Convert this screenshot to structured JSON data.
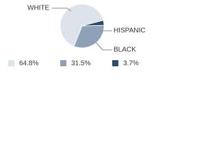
{
  "chart_data": {
    "type": "pie",
    "categories": [
      "WHITE",
      "BLACK",
      "HISPANIC"
    ],
    "values": [
      64.8,
      31.5,
      3.7
    ],
    "value_labels": [
      "64.8%",
      "31.5%",
      "3.7%"
    ],
    "colors": [
      "#dde3ea",
      "#8fa1b6",
      "#2f4c6b"
    ]
  }
}
